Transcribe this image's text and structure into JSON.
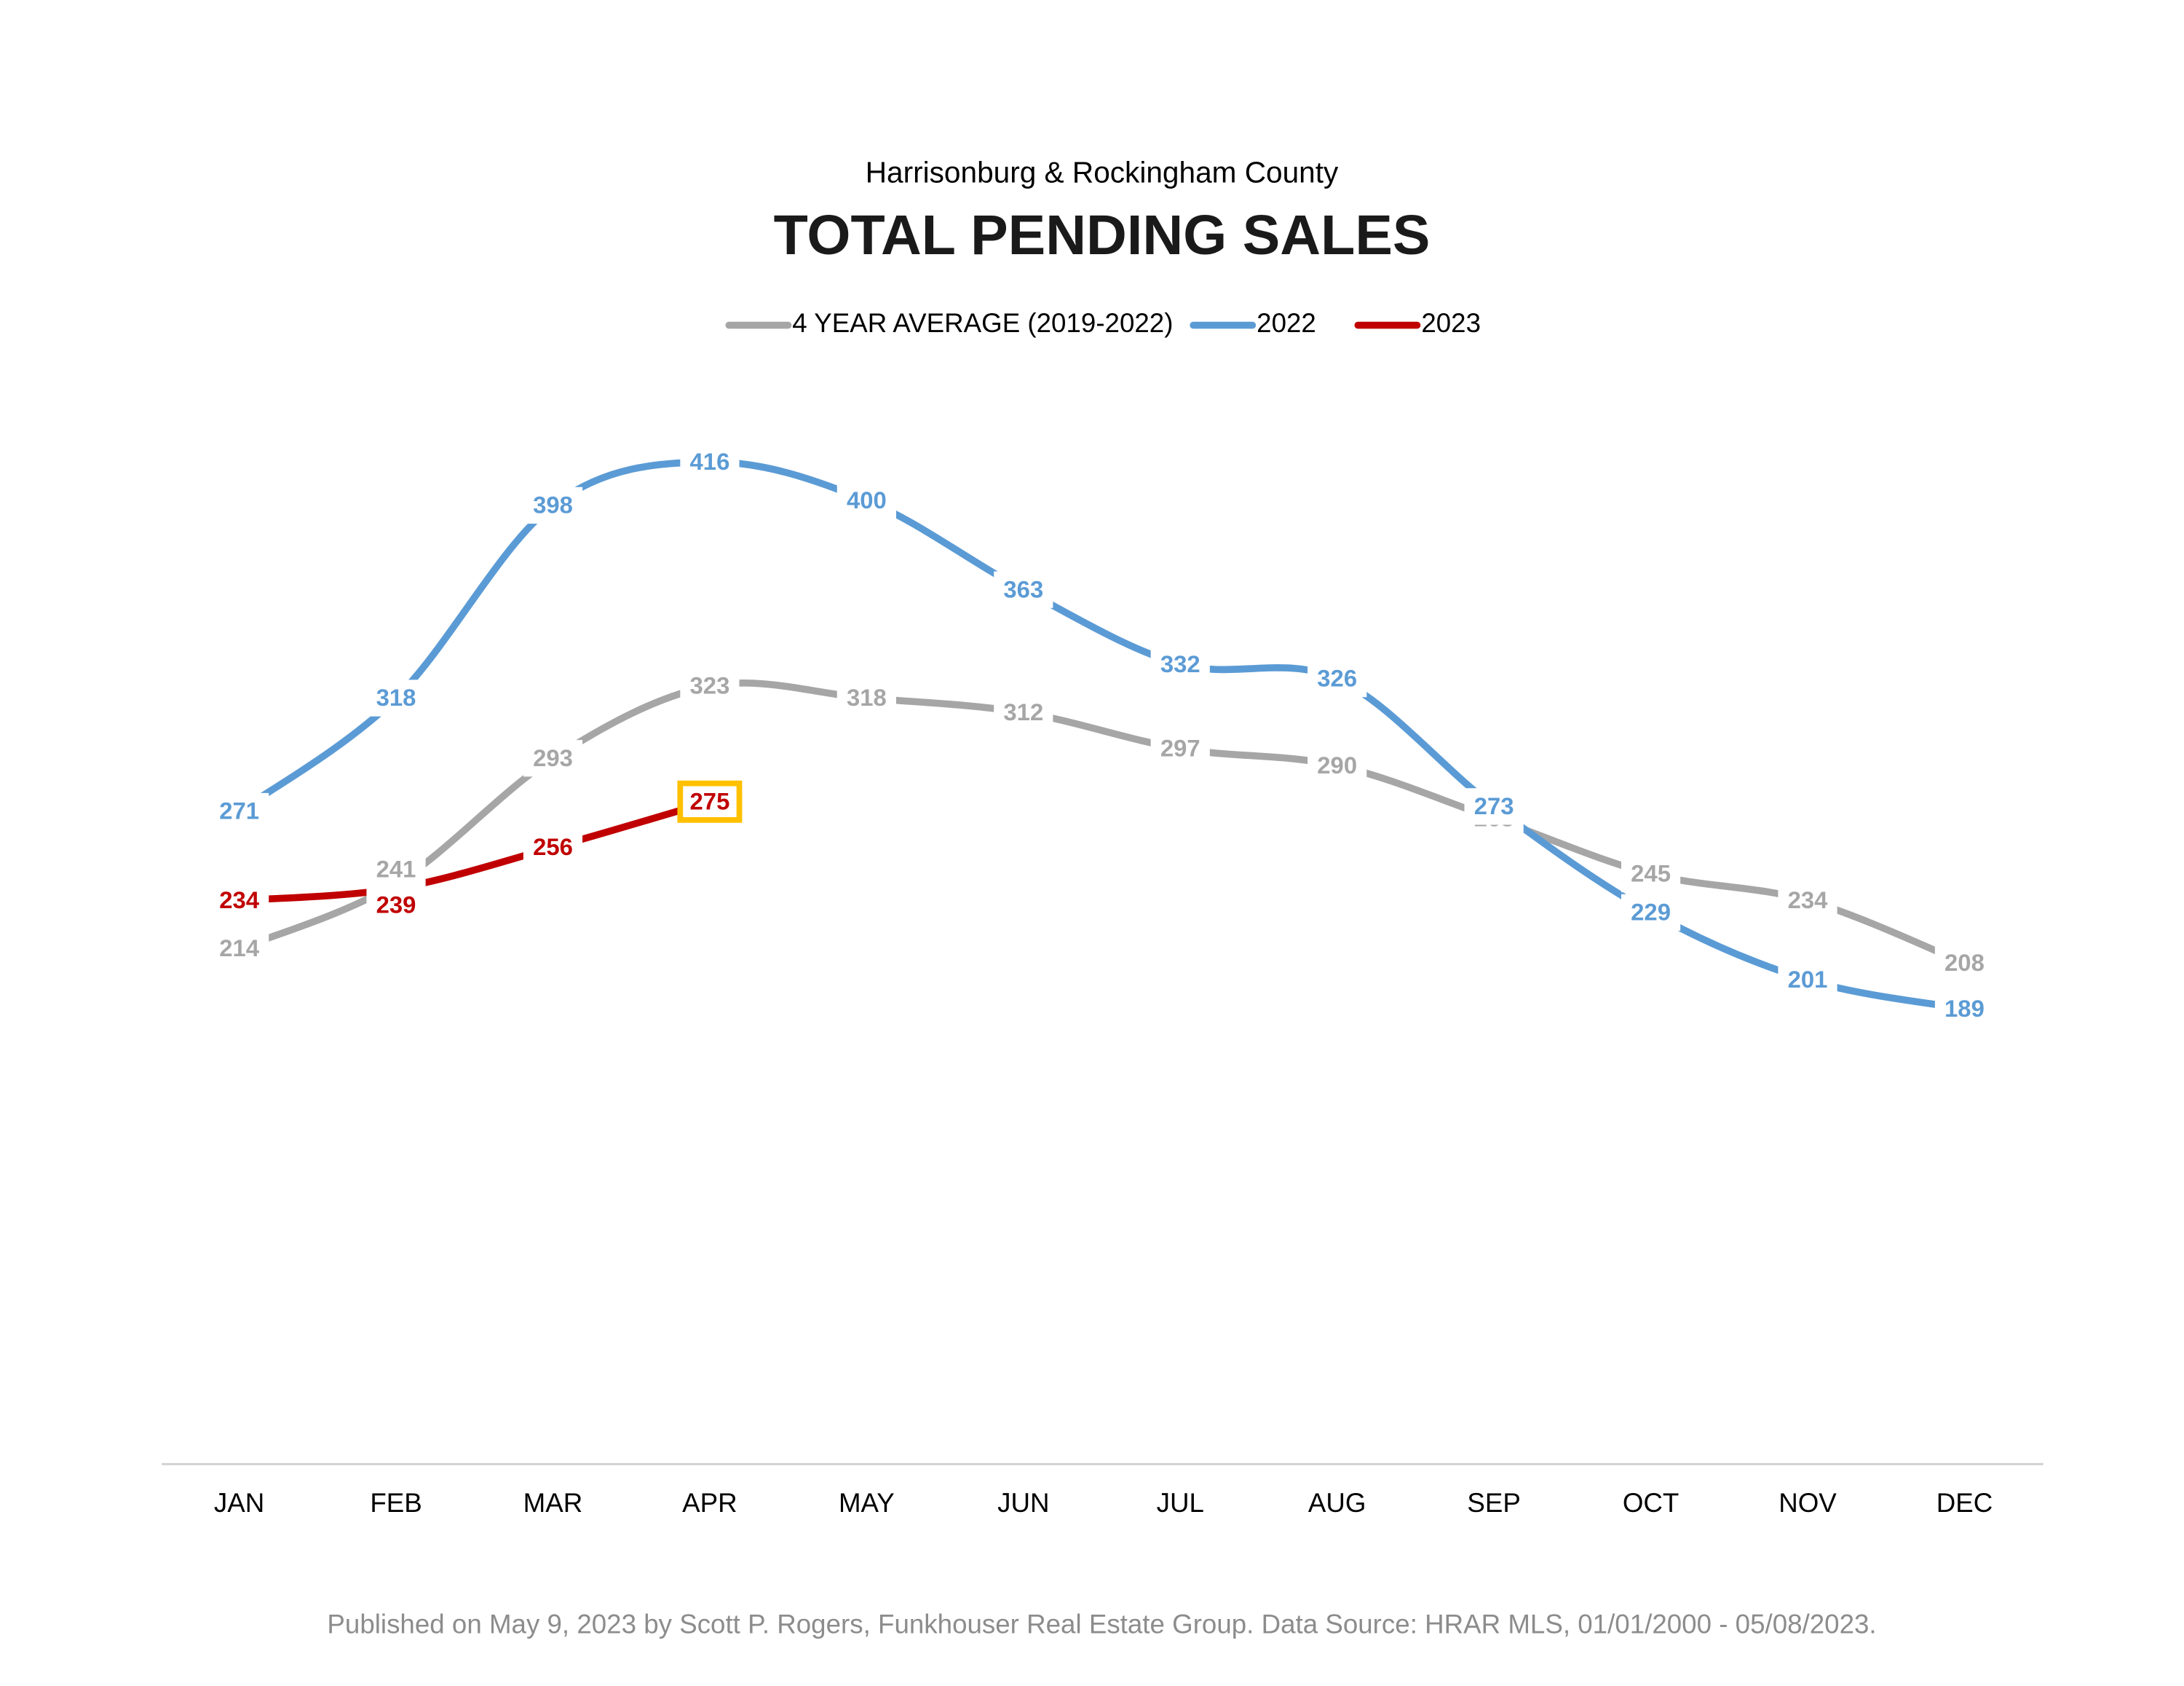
{
  "chart_data": {
    "type": "line",
    "subtitle": "Harrisonburg & Rockingham County",
    "title": "TOTAL PENDING SALES",
    "categories": [
      "JAN",
      "FEB",
      "MAR",
      "APR",
      "MAY",
      "JUN",
      "JUL",
      "AUG",
      "SEP",
      "OCT",
      "NOV",
      "DEC"
    ],
    "series": [
      {
        "name": "4 YEAR AVERAGE (2019-2022)",
        "color": "#a6a6a6",
        "values": [
          214,
          241,
          293,
          323,
          318,
          312,
          297,
          290,
          268,
          245,
          234,
          208
        ]
      },
      {
        "name": "2022",
        "color": "#5b9bd5",
        "values": [
          271,
          318,
          398,
          416,
          400,
          363,
          332,
          326,
          273,
          229,
          201,
          189
        ]
      },
      {
        "name": "2023",
        "color": "#c00000",
        "values": [
          234,
          239,
          256,
          275,
          null,
          null,
          null,
          null,
          null,
          null,
          null,
          null
        ]
      }
    ],
    "highlight": {
      "series": 2,
      "index": 3,
      "color": "#ffc000"
    },
    "ylim": [
      0,
      450
    ],
    "note": "Published on May 9, 2023 by Scott P. Rogers, Funkhouser Real Estate Group. Data Source: HRAR MLS, 01/01/2000 - 05/08/2023."
  }
}
